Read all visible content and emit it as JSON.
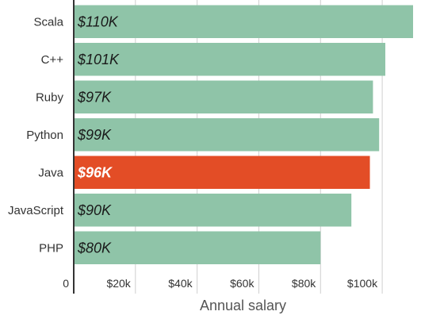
{
  "chart_data": {
    "type": "bar",
    "orientation": "horizontal",
    "categories": [
      "Scala",
      "C++",
      "Ruby",
      "Python",
      "Java",
      "JavaScript",
      "PHP"
    ],
    "values": [
      110,
      101,
      97,
      99,
      96,
      90,
      80
    ],
    "value_labels": [
      "$110K",
      "$101K",
      "$97K",
      "$99K",
      "$96K",
      "$90K",
      "$80K"
    ],
    "highlight_category": "Java",
    "xlabel": "Annual salary",
    "ylabel": "",
    "xlim": [
      0,
      110
    ],
    "x_ticks": [
      0,
      20,
      40,
      60,
      80,
      100
    ],
    "x_tick_labels": [
      "0",
      "$20k",
      "$40k",
      "$60k",
      "$80k",
      "$100k"
    ],
    "grid": true,
    "colors": {
      "bar": "#8fc4a8",
      "highlight": "#e34d26",
      "grid": "#cfcfcf",
      "axis": "#333333",
      "label_text": "#1a1a1a",
      "highlight_label_text": "#ffffff"
    }
  }
}
